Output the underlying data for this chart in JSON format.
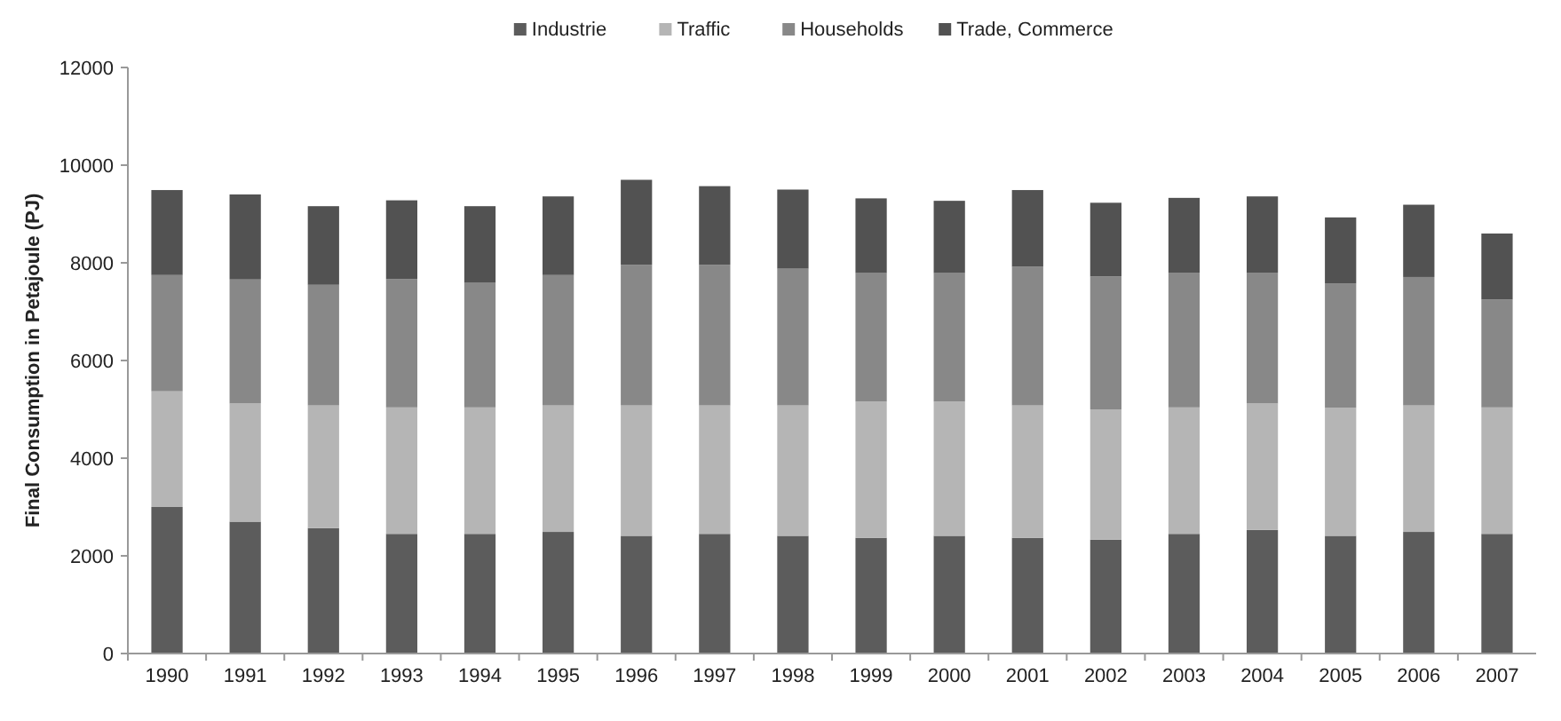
{
  "chart_data": {
    "type": "bar",
    "stacked": true,
    "ylabel": "Final Consumption in Petajoule (PJ)",
    "categories": [
      "1990",
      "1991",
      "1992",
      "1993",
      "1994",
      "1995",
      "1996",
      "1997",
      "1998",
      "1999",
      "2000",
      "2001",
      "2002",
      "2003",
      "2004",
      "2005",
      "2006",
      "2007"
    ],
    "series": [
      {
        "name": "Industrie",
        "color": "#5c5c5c",
        "values": [
          3000,
          2700,
          2570,
          2450,
          2450,
          2490,
          2410,
          2450,
          2410,
          2370,
          2410,
          2370,
          2330,
          2450,
          2530,
          2410,
          2490,
          2450
        ]
      },
      {
        "name": "Traffic",
        "color": "#b5b5b5",
        "values": [
          2370,
          2420,
          2510,
          2590,
          2590,
          2590,
          2670,
          2630,
          2670,
          2790,
          2750,
          2710,
          2670,
          2590,
          2590,
          2620,
          2590,
          2590
        ]
      },
      {
        "name": "Households",
        "color": "#888888",
        "values": [
          2380,
          2540,
          2470,
          2630,
          2550,
          2670,
          2880,
          2880,
          2800,
          2630,
          2630,
          2840,
          2720,
          2760,
          2680,
          2550,
          2630,
          2210
        ]
      },
      {
        "name": "Trade, Commerce",
        "color": "#525252",
        "values": [
          1740,
          1740,
          1610,
          1610,
          1570,
          1610,
          1740,
          1610,
          1620,
          1530,
          1480,
          1570,
          1510,
          1530,
          1560,
          1350,
          1480,
          1350
        ]
      }
    ],
    "ylim": [
      0,
      12000
    ],
    "yticks": [
      0,
      2000,
      4000,
      6000,
      8000,
      10000,
      12000
    ],
    "grid": false,
    "legend": "top"
  }
}
